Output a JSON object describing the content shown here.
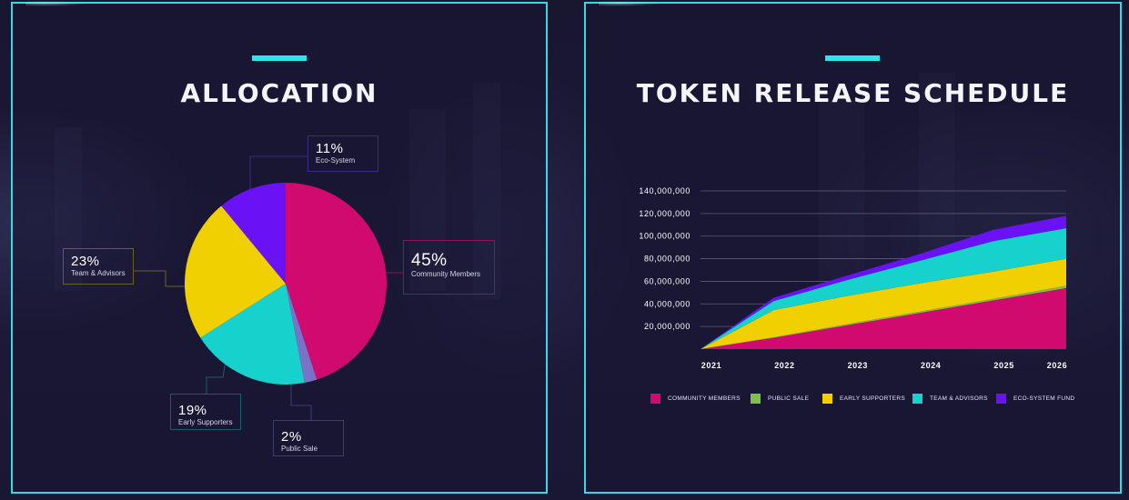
{
  "allocation": {
    "title": "ALLOCATION",
    "labels": [
      {
        "pct": "11%",
        "name": "Eco-System"
      },
      {
        "pct": "45%",
        "name": "Community Members"
      },
      {
        "pct": "23%",
        "name": "Team & Advisors"
      },
      {
        "pct": "19%",
        "name": "Early Supporters"
      },
      {
        "pct": "2%",
        "name": "Public Sale"
      }
    ]
  },
  "schedule": {
    "title": "TOKEN RELEASE SCHEDULE"
  },
  "colors": {
    "community": "#d00a6f",
    "public_sale": "#7ec04a",
    "early_supporters": "#f0d000",
    "team_advisors": "#17d1cd",
    "ecosystem": "#6a12f5",
    "accent": "#2fe4ea"
  },
  "chart_data": [
    {
      "type": "pie",
      "title": "ALLOCATION",
      "slices": [
        {
          "name": "Community Members",
          "value": 45,
          "color": "#d00a6f"
        },
        {
          "name": "Public Sale",
          "value": 2,
          "color": "#7a72c8"
        },
        {
          "name": "Early Supporters",
          "value": 19,
          "color": "#17d1cd"
        },
        {
          "name": "Team & Advisors",
          "value": 23,
          "color": "#f0d000"
        },
        {
          "name": "Eco-System",
          "value": 11,
          "color": "#6a12f5"
        }
      ]
    },
    {
      "type": "area",
      "title": "TOKEN RELEASE SCHEDULE",
      "stacked": true,
      "x": [
        "2021",
        "2022",
        "2023",
        "2024",
        "2025",
        "2026"
      ],
      "y_ticks": [
        "20,000,000",
        "40,000,000",
        "60,000,000",
        "80,000,000",
        "100,000,000",
        "120,000,000",
        "140,000,000"
      ],
      "ylim": [
        0,
        140000000
      ],
      "grid": true,
      "legend_position": "bottom",
      "series": [
        {
          "name": "COMMUNITY MEMBERS",
          "color": "#d00a6f",
          "values": [
            0,
            10000000,
            21000000,
            32000000,
            43000000,
            54000000
          ]
        },
        {
          "name": "PUBLIC SALE",
          "color": "#7ec04a",
          "values": [
            0,
            500000,
            1000000,
            1200000,
            1500000,
            2000000
          ]
        },
        {
          "name": "EARLY SUPPORTERS",
          "color": "#f0d000",
          "values": [
            0,
            24000000,
            25000000,
            25000000,
            24000000,
            24000000
          ]
        },
        {
          "name": "TEAM & ADVISORS",
          "color": "#17d1cd",
          "values": [
            0,
            8000000,
            14000000,
            20000000,
            27000000,
            27000000
          ]
        },
        {
          "name": "ECO-SYSTEM FUND",
          "color": "#6a12f5",
          "values": [
            0,
            3000000,
            4000000,
            6000000,
            10000000,
            11000000
          ]
        }
      ]
    }
  ]
}
